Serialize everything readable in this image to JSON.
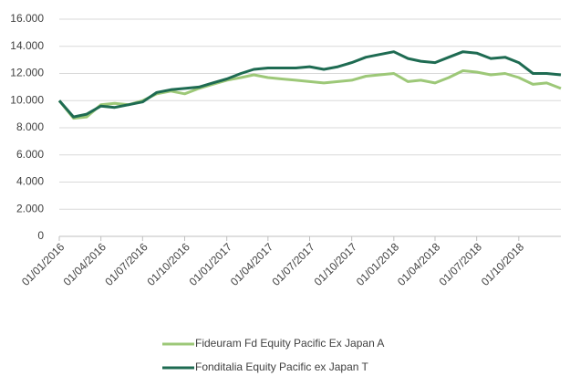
{
  "chart_data": {
    "type": "line",
    "x": [
      "01/01/2016",
      "01/02/2016",
      "01/03/2016",
      "01/04/2016",
      "01/05/2016",
      "01/06/2016",
      "01/07/2016",
      "01/08/2016",
      "01/09/2016",
      "01/10/2016",
      "01/11/2016",
      "01/12/2016",
      "01/01/2017",
      "01/02/2017",
      "01/03/2017",
      "01/04/2017",
      "01/05/2017",
      "01/06/2017",
      "01/07/2017",
      "01/08/2017",
      "01/09/2017",
      "01/10/2017",
      "01/11/2017",
      "01/12/2017",
      "01/01/2018",
      "01/02/2018",
      "01/03/2018",
      "01/04/2018",
      "01/05/2018",
      "01/06/2018",
      "01/07/2018",
      "01/08/2018",
      "01/09/2018",
      "01/10/2018",
      "01/11/2018",
      "01/12/2018",
      "01/01/2019"
    ],
    "series": [
      {
        "name": "Fideuram Fd Equity Pacific Ex Japan A",
        "color": "#9dc878",
        "values": [
          10000,
          8700,
          8800,
          9700,
          9800,
          9700,
          10000,
          10500,
          10700,
          10500,
          10900,
          11200,
          11500,
          11700,
          11900,
          11700,
          11600,
          11500,
          11400,
          11300,
          11400,
          11500,
          11800,
          11900,
          12000,
          11400,
          11500,
          11300,
          11700,
          12200,
          12100,
          11900,
          12000,
          11700,
          11200,
          11300,
          10900
        ]
      },
      {
        "name": "Fonditalia Equity Pacific ex Japan T",
        "color": "#1e6b52",
        "values": [
          10000,
          8800,
          9000,
          9600,
          9500,
          9700,
          9900,
          10600,
          10800,
          10900,
          11000,
          11300,
          11600,
          12000,
          12300,
          12400,
          12400,
          12400,
          12500,
          12300,
          12500,
          12800,
          13200,
          13400,
          13600,
          13100,
          12900,
          12800,
          13200,
          13600,
          13500,
          13100,
          13200,
          12800,
          12000,
          12000,
          11900
        ]
      }
    ],
    "xlim": [
      "01/01/2016",
      "01/01/2019"
    ],
    "xticks": [
      "01/01/2016",
      "01/04/2016",
      "01/07/2016",
      "01/10/2016",
      "01/01/2017",
      "01/04/2017",
      "01/07/2017",
      "01/10/2017",
      "01/01/2018",
      "01/04/2018",
      "01/07/2018",
      "01/10/2018"
    ],
    "ylim": [
      0,
      16000
    ],
    "yticks": [
      0,
      {
        "value": 2000,
        "label": "2.000"
      },
      {
        "value": 4000,
        "label": "4.000"
      },
      {
        "value": 6000,
        "label": "6.000"
      },
      {
        "value": 8000,
        "label": "8.000"
      },
      {
        "value": 10000,
        "label": "10.000"
      },
      {
        "value": 12000,
        "label": "12.000"
      },
      {
        "value": 14000,
        "label": "14.000"
      },
      {
        "value": 16000,
        "label": "16.000"
      }
    ],
    "grid": true,
    "legend": "bottom"
  }
}
